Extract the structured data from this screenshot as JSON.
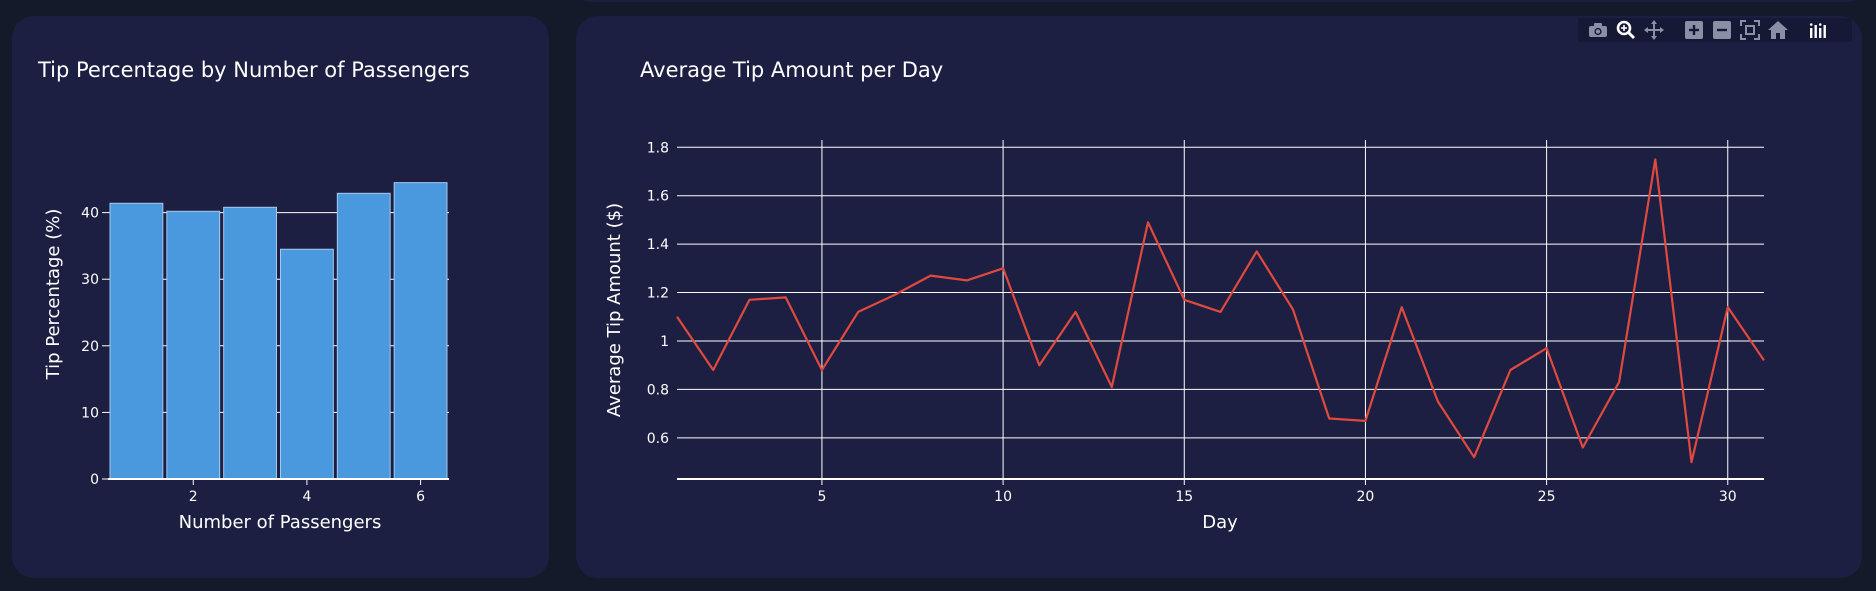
{
  "colors": {
    "page_bg": "#151a2b",
    "card_bg": "#1c1f42",
    "bar": "#4a98dd",
    "line": "#e0493e",
    "grid": "#ffffff",
    "modebar_icon": "#8a8fa6",
    "modebar_active": "#ffffff"
  },
  "modebar": {
    "icons": [
      "camera-icon",
      "zoom-icon",
      "pan-icon",
      "zoom-in-icon",
      "zoom-out-icon",
      "autoscale-icon",
      "home-icon",
      "plotly-logo-icon"
    ]
  },
  "chart_data": [
    {
      "type": "bar",
      "title": "Tip Percentage by Number of Passengers",
      "xlabel": "Number of Passengers",
      "ylabel": "Tip Percentage (%)",
      "categories": [
        1,
        2,
        3,
        4,
        5,
        6
      ],
      "values": [
        41.4,
        40.2,
        40.8,
        34.5,
        42.9,
        44.5
      ],
      "xlim": [
        0.5,
        6.5
      ],
      "ylim": [
        0,
        47
      ],
      "xticks": [
        2,
        4,
        6
      ],
      "yticks": [
        0,
        10,
        20,
        30,
        40
      ],
      "grid": true,
      "legend": "none"
    },
    {
      "type": "line",
      "title": "Average Tip Amount per Day",
      "xlabel": "Day",
      "ylabel": "Average Tip Amount ($)",
      "x": [
        1,
        2,
        3,
        4,
        5,
        6,
        7,
        8,
        9,
        10,
        11,
        12,
        13,
        14,
        15,
        16,
        17,
        18,
        19,
        20,
        21,
        22,
        23,
        24,
        25,
        26,
        27,
        28,
        29,
        30,
        31
      ],
      "y": [
        1.1,
        0.88,
        1.17,
        1.18,
        0.88,
        1.12,
        1.19,
        1.27,
        1.25,
        1.3,
        0.9,
        1.12,
        0.81,
        1.49,
        1.17,
        1.12,
        1.37,
        1.13,
        0.68,
        0.67,
        1.14,
        0.75,
        0.52,
        0.88,
        0.97,
        0.56,
        0.83,
        1.75,
        0.5,
        1.14,
        0.92
      ],
      "xlim": [
        1,
        31
      ],
      "ylim": [
        0.43,
        1.83
      ],
      "xticks": [
        5,
        10,
        15,
        20,
        25,
        30
      ],
      "yticks": [
        0.6,
        0.8,
        1,
        1.2,
        1.4,
        1.6,
        1.8
      ],
      "ytick_labels": [
        "0.6",
        "0.8",
        "1",
        "1.2",
        "1.4",
        "1.6",
        "1.8"
      ],
      "grid": true,
      "legend": "none"
    }
  ]
}
